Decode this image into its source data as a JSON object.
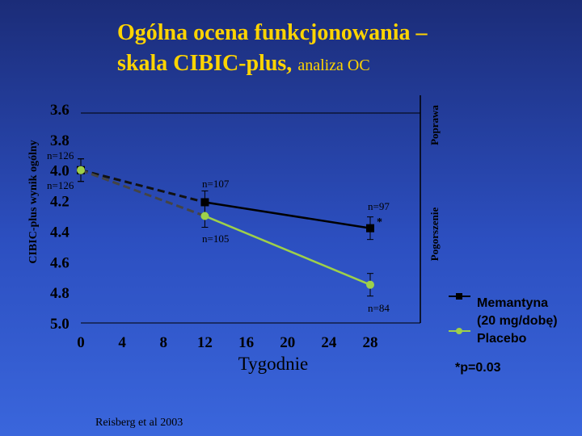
{
  "title": {
    "line1": "Ogólna ocena funkcjonowania –",
    "line2_main": "skala CIBIC-plus,",
    "line2_small": "analiza OC"
  },
  "source": "Reisberg et al 2003",
  "colors": {
    "title": "#ffd400",
    "memantine": "#000000",
    "placebo": "#9ed04a",
    "axis_text": "#000000"
  },
  "chart_data": {
    "type": "line",
    "title": "Ogólna ocena funkcjonowania – skala CIBIC-plus, analiza OC",
    "xlabel": "Tygodnie",
    "ylabel": "CIBIC-plus wynik ogólny",
    "x_ticks": [
      "0",
      "4",
      "8",
      "12",
      "16",
      "20",
      "24",
      "28"
    ],
    "y_ticks": [
      "3.6",
      "3.8",
      "4.0",
      "4.2",
      "4.4",
      "4.6",
      "4.8",
      "5.0"
    ],
    "xlim": [
      0,
      28
    ],
    "ylim": [
      5.0,
      3.6
    ],
    "y_inverted": true,
    "right_labels": {
      "upper": "Poprawa",
      "lower": "Pogorszenie"
    },
    "x": [
      0,
      12,
      28
    ],
    "series": [
      {
        "name": "Memantyna (20 mg/dobę)",
        "values": [
          4.0,
          4.21,
          4.38
        ],
        "n_labels": [
          "n=126",
          "n=107",
          "n=97"
        ],
        "significance": [
          "",
          "",
          "*"
        ]
      },
      {
        "name": "Placebo",
        "values": [
          4.0,
          4.3,
          4.75
        ],
        "n_labels": [
          "n=126",
          "n=105",
          "n=84"
        ],
        "significance": [
          "",
          "",
          ""
        ]
      }
    ],
    "footnote": "*p=0.03"
  }
}
